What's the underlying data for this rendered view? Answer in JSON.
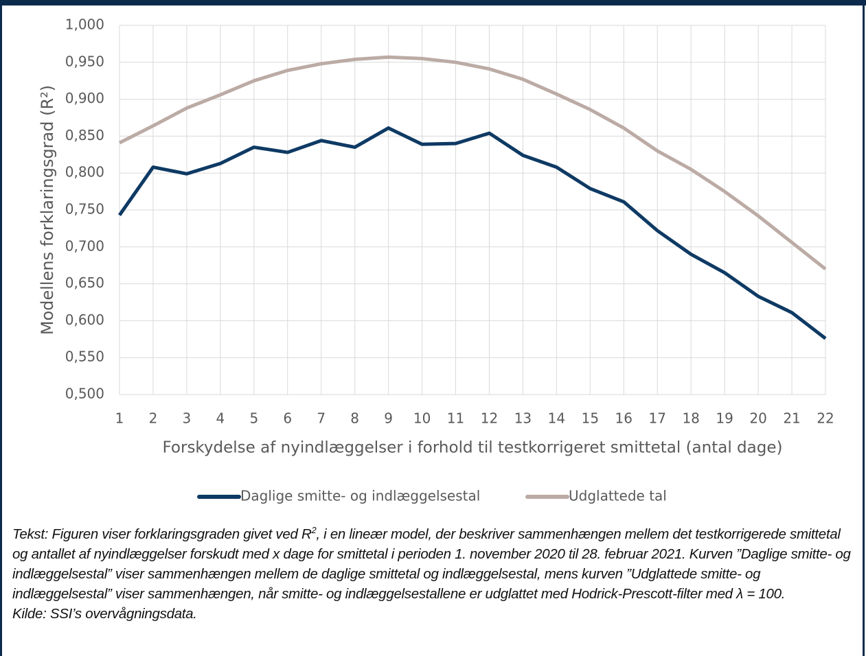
{
  "chart_data": {
    "type": "line",
    "ylabel": "Modellens forklaringsgrad (R²)",
    "xlabel": "Forskydelse af nyindlæggelser i forhold til testkorrigeret smittetal (antal dage)",
    "x": [
      1,
      2,
      3,
      4,
      5,
      6,
      7,
      8,
      9,
      10,
      11,
      12,
      13,
      14,
      15,
      16,
      17,
      18,
      19,
      20,
      21,
      22
    ],
    "xlim": [
      1,
      22
    ],
    "xticks": [
      1,
      2,
      3,
      4,
      5,
      6,
      7,
      8,
      9,
      10,
      11,
      12,
      13,
      14,
      15,
      16,
      17,
      18,
      19,
      20,
      21,
      22
    ],
    "ylim": [
      0.5,
      1
    ],
    "yticks": [
      {
        "value": 0.5,
        "label": "0,500"
      },
      {
        "value": 0.55,
        "label": "0,550"
      },
      {
        "value": 0.6,
        "label": "0,600"
      },
      {
        "value": 0.65,
        "label": "0,650"
      },
      {
        "value": 0.7,
        "label": "0,700"
      },
      {
        "value": 0.75,
        "label": "0,750"
      },
      {
        "value": 0.8,
        "label": "0,800"
      },
      {
        "value": 0.85,
        "label": "0,850"
      },
      {
        "value": 0.9,
        "label": "0,900"
      },
      {
        "value": 0.95,
        "label": "0,950"
      },
      {
        "value": 1,
        "label": "1,000"
      }
    ],
    "grid": true,
    "legend": "bottom",
    "series": [
      {
        "name": "Daglige smitte- og indlæggelsestal",
        "color": "#0e3a64",
        "values": [
          0.743,
          0.808,
          0.799,
          0.813,
          0.835,
          0.828,
          0.844,
          0.835,
          0.861,
          0.839,
          0.84,
          0.854,
          0.824,
          0.808,
          0.779,
          0.761,
          0.722,
          0.69,
          0.665,
          0.633,
          0.611,
          0.576
        ]
      },
      {
        "name": "Udglattede tal",
        "color": "#bcaba5",
        "values": [
          0.841,
          0.864,
          0.888,
          0.906,
          0.925,
          0.939,
          0.948,
          0.954,
          0.957,
          0.955,
          0.95,
          0.941,
          0.927,
          0.907,
          0.886,
          0.861,
          0.83,
          0.805,
          0.775,
          0.742,
          0.706,
          0.67
        ]
      }
    ],
    "caption": [
      "Tekst: Figuren viser forklaringsgraden givet ved R",
      "2",
      ", i en lineær model, der beskriver sammenhængen mellem det testkorrigerede smittetal og antallet af nyindlæggelser forskudt med x dage for smittetal i perioden 1. november 2020 til 28. februar 2021. Kurven ”Daglige smitte- og indlæggelsestal” viser sammenhængen mellem de daglige smittetal og indlæggelsestal, mens kurven ”Udglattede smitte- og indlæggelsestal” viser sammenhængen, når smitte- og indlæggelsestallene er udglattet med Hodrick-Prescott-filter med λ = 100."
    ],
    "source": "Kilde: SSI’s overvågningsdata."
  }
}
